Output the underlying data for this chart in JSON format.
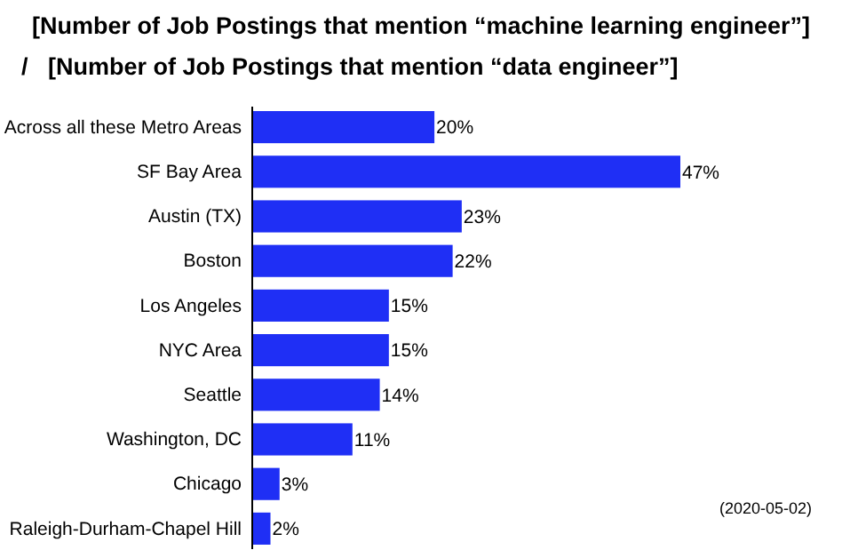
{
  "chart_data": {
    "type": "bar",
    "orientation": "horizontal",
    "title": "[Number of Job Postings that mention “machine learning engineer”]\n/   [Number of Job Postings that mention “data engineer”]",
    "categories": [
      "Across all these Metro Areas",
      "SF Bay Area",
      "Austin (TX)",
      "Boston",
      "Los Angeles",
      "NYC Area",
      "Seattle",
      "Washington, DC",
      "Chicago",
      "Raleigh-Durham-Chapel Hill"
    ],
    "values": [
      20,
      47,
      23,
      22,
      15,
      15,
      14,
      11,
      3,
      2
    ],
    "value_labels": [
      "20%",
      "47%",
      "23%",
      "22%",
      "15%",
      "15%",
      "14%",
      "11%",
      "3%",
      "2%"
    ],
    "color": "#1f2ff5",
    "annotations": [
      "(2020-05-02)"
    ]
  }
}
